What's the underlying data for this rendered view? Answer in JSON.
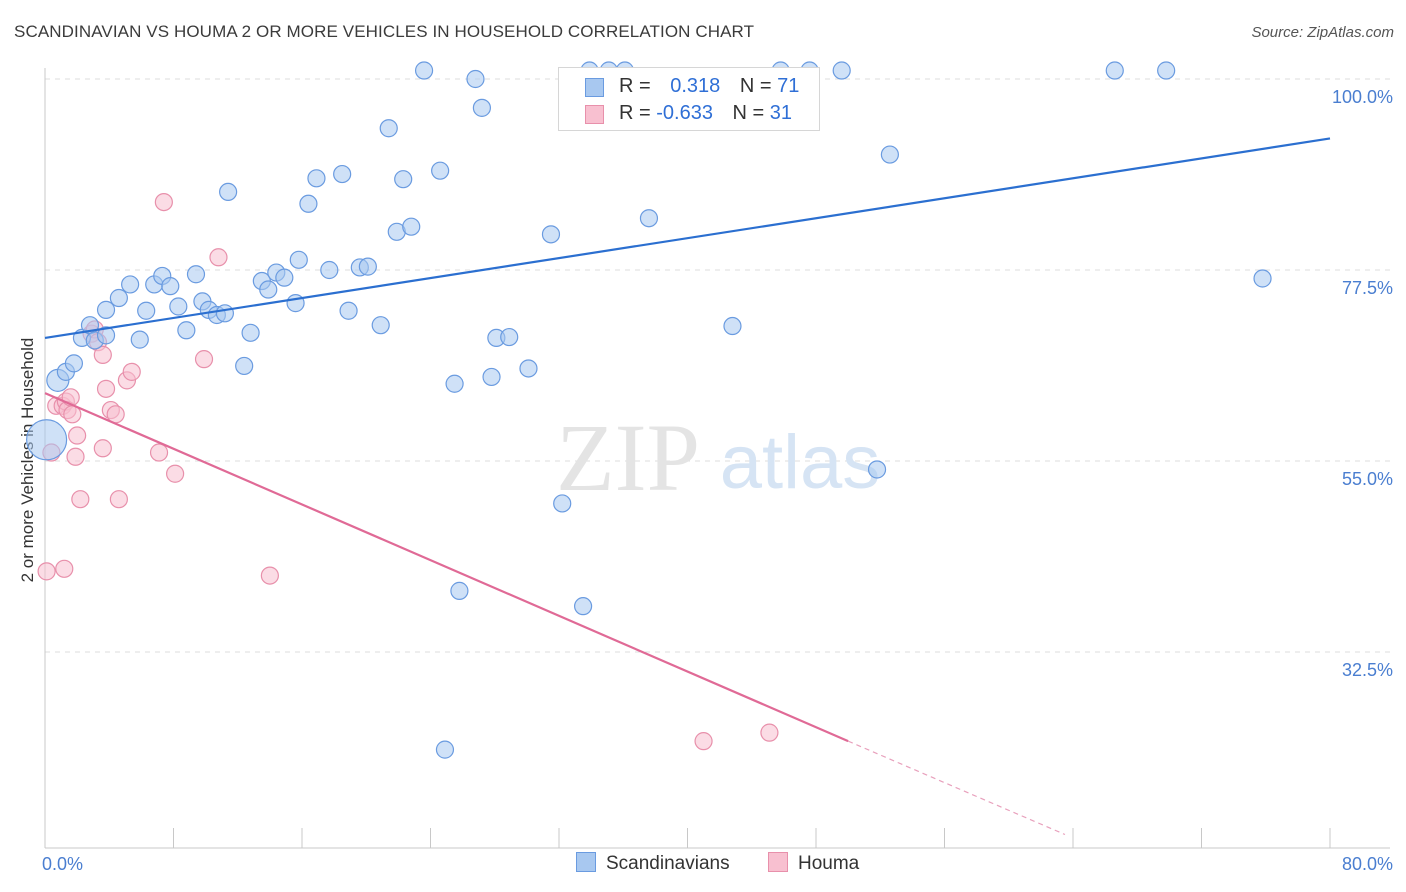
{
  "header": {
    "title": "SCANDINAVIAN VS HOUMA 2 OR MORE VEHICLES IN HOUSEHOLD CORRELATION CHART",
    "source": "Source: ZipAtlas.com"
  },
  "legend_top": {
    "rows": [
      {
        "r_label": "R =",
        "r_value": "0.318",
        "n_label": "N =",
        "n_value": "71",
        "color": "#a8c8f0",
        "border": "#6a9be0"
      },
      {
        "r_label": "R =",
        "r_value": "-0.633",
        "n_label": "N =",
        "n_value": "31",
        "color": "#f8c0d0",
        "border": "#e890ab"
      }
    ]
  },
  "bottom_legend": {
    "items": [
      {
        "label": "Scandinavians",
        "color": "#a8c8f0",
        "border": "#6a9be0"
      },
      {
        "label": "Houma",
        "color": "#f8c0d0",
        "border": "#e890ab"
      }
    ]
  },
  "watermark": {
    "zip": "ZIP",
    "atlas": "atlas"
  },
  "chart_data": {
    "type": "scatter",
    "title": "SCANDINAVIAN VS HOUMA 2 OR MORE VEHICLES IN HOUSEHOLD CORRELATION CHART",
    "xlabel": "",
    "ylabel": "2 or more Vehicles in Household",
    "xlim": [
      0,
      80
    ],
    "ylim": [
      10,
      101
    ],
    "x_tick_labels": [
      "0.0%",
      "80.0%"
    ],
    "y_ticks": [
      32.5,
      55.0,
      77.5,
      100.0
    ],
    "y_tick_labels": [
      "32.5%",
      "55.0%",
      "77.5%",
      "100.0%"
    ],
    "grid": "horizontal dashed",
    "legend": "top-center",
    "colors": {
      "scandinavians": "#4a86d8",
      "houma": "#e07098"
    },
    "series": [
      {
        "name": "Scandinavians",
        "points": [
          [
            0.1,
            57.5
          ],
          [
            0.8,
            64.5
          ],
          [
            1.3,
            65.5
          ],
          [
            1.8,
            66.5
          ],
          [
            2.3,
            69.5
          ],
          [
            2.8,
            71.0
          ],
          [
            3.1,
            69.2
          ],
          [
            3.8,
            69.8
          ],
          [
            3.8,
            72.8
          ],
          [
            4.6,
            74.2
          ],
          [
            5.3,
            75.8
          ],
          [
            5.9,
            69.3
          ],
          [
            6.3,
            72.7
          ],
          [
            6.8,
            75.8
          ],
          [
            7.3,
            76.8
          ],
          [
            7.8,
            75.6
          ],
          [
            8.3,
            73.2
          ],
          [
            8.8,
            70.4
          ],
          [
            9.4,
            77.0
          ],
          [
            9.8,
            73.8
          ],
          [
            10.2,
            72.8
          ],
          [
            10.7,
            72.2
          ],
          [
            11.2,
            72.4
          ],
          [
            11.4,
            86.7
          ],
          [
            12.4,
            66.2
          ],
          [
            12.8,
            70.1
          ],
          [
            13.5,
            76.2
          ],
          [
            13.9,
            75.2
          ],
          [
            14.4,
            77.2
          ],
          [
            14.9,
            76.6
          ],
          [
            15.6,
            73.6
          ],
          [
            15.8,
            78.7
          ],
          [
            16.4,
            85.3
          ],
          [
            16.9,
            88.3
          ],
          [
            17.7,
            77.5
          ],
          [
            18.5,
            88.8
          ],
          [
            18.9,
            72.7
          ],
          [
            19.6,
            77.8
          ],
          [
            20.1,
            77.9
          ],
          [
            20.9,
            71.0
          ],
          [
            21.4,
            94.2
          ],
          [
            21.9,
            82.0
          ],
          [
            22.3,
            88.2
          ],
          [
            22.8,
            82.6
          ],
          [
            23.6,
            101.0
          ],
          [
            24.6,
            89.2
          ],
          [
            24.9,
            21.0
          ],
          [
            25.5,
            64.1
          ],
          [
            25.8,
            39.7
          ],
          [
            26.8,
            100.0
          ],
          [
            27.2,
            96.6
          ],
          [
            27.8,
            64.9
          ],
          [
            28.1,
            69.5
          ],
          [
            28.9,
            69.6
          ],
          [
            30.1,
            65.9
          ],
          [
            31.5,
            81.7
          ],
          [
            32.2,
            50.0
          ],
          [
            33.5,
            37.9
          ],
          [
            33.9,
            101.0
          ],
          [
            35.1,
            101.0
          ],
          [
            36.1,
            101.0
          ],
          [
            37.6,
            83.6
          ],
          [
            42.8,
            70.9
          ],
          [
            45.8,
            101.0
          ],
          [
            47.6,
            101.0
          ],
          [
            49.6,
            101.0
          ],
          [
            51.8,
            54.0
          ],
          [
            52.6,
            91.1
          ],
          [
            66.6,
            101.0
          ],
          [
            69.8,
            101.0
          ],
          [
            75.8,
            76.5
          ]
        ],
        "trend": {
          "x": [
            0,
            80
          ],
          "y": [
            69.5,
            93.0
          ]
        }
      },
      {
        "name": "Houma",
        "points": [
          [
            0.1,
            42.0
          ],
          [
            0.4,
            56.0
          ],
          [
            0.7,
            61.5
          ],
          [
            1.1,
            61.5
          ],
          [
            1.2,
            42.3
          ],
          [
            1.3,
            62.0
          ],
          [
            1.4,
            61.0
          ],
          [
            1.6,
            62.5
          ],
          [
            1.9,
            55.5
          ],
          [
            2.0,
            58.0
          ],
          [
            2.2,
            50.5
          ],
          [
            2.9,
            70.0
          ],
          [
            3.1,
            70.5
          ],
          [
            3.3,
            69.0
          ],
          [
            3.6,
            67.5
          ],
          [
            3.6,
            56.5
          ],
          [
            3.8,
            63.5
          ],
          [
            4.1,
            61.0
          ],
          [
            4.4,
            60.5
          ],
          [
            4.6,
            50.5
          ],
          [
            5.1,
            64.5
          ],
          [
            5.4,
            65.5
          ],
          [
            7.1,
            56.0
          ],
          [
            7.4,
            85.5
          ],
          [
            8.1,
            53.5
          ],
          [
            9.9,
            67.0
          ],
          [
            10.8,
            79.0
          ],
          [
            14.0,
            41.5
          ],
          [
            41.0,
            22.0
          ],
          [
            45.1,
            23.0
          ],
          [
            1.7,
            60.5
          ]
        ],
        "trend": {
          "x": [
            0,
            50
          ],
          "y": [
            63.0,
            22.0
          ],
          "dashed_extension": {
            "x": [
              50,
              63.5
            ],
            "y": [
              22.0,
              11.0
            ]
          }
        }
      }
    ]
  }
}
